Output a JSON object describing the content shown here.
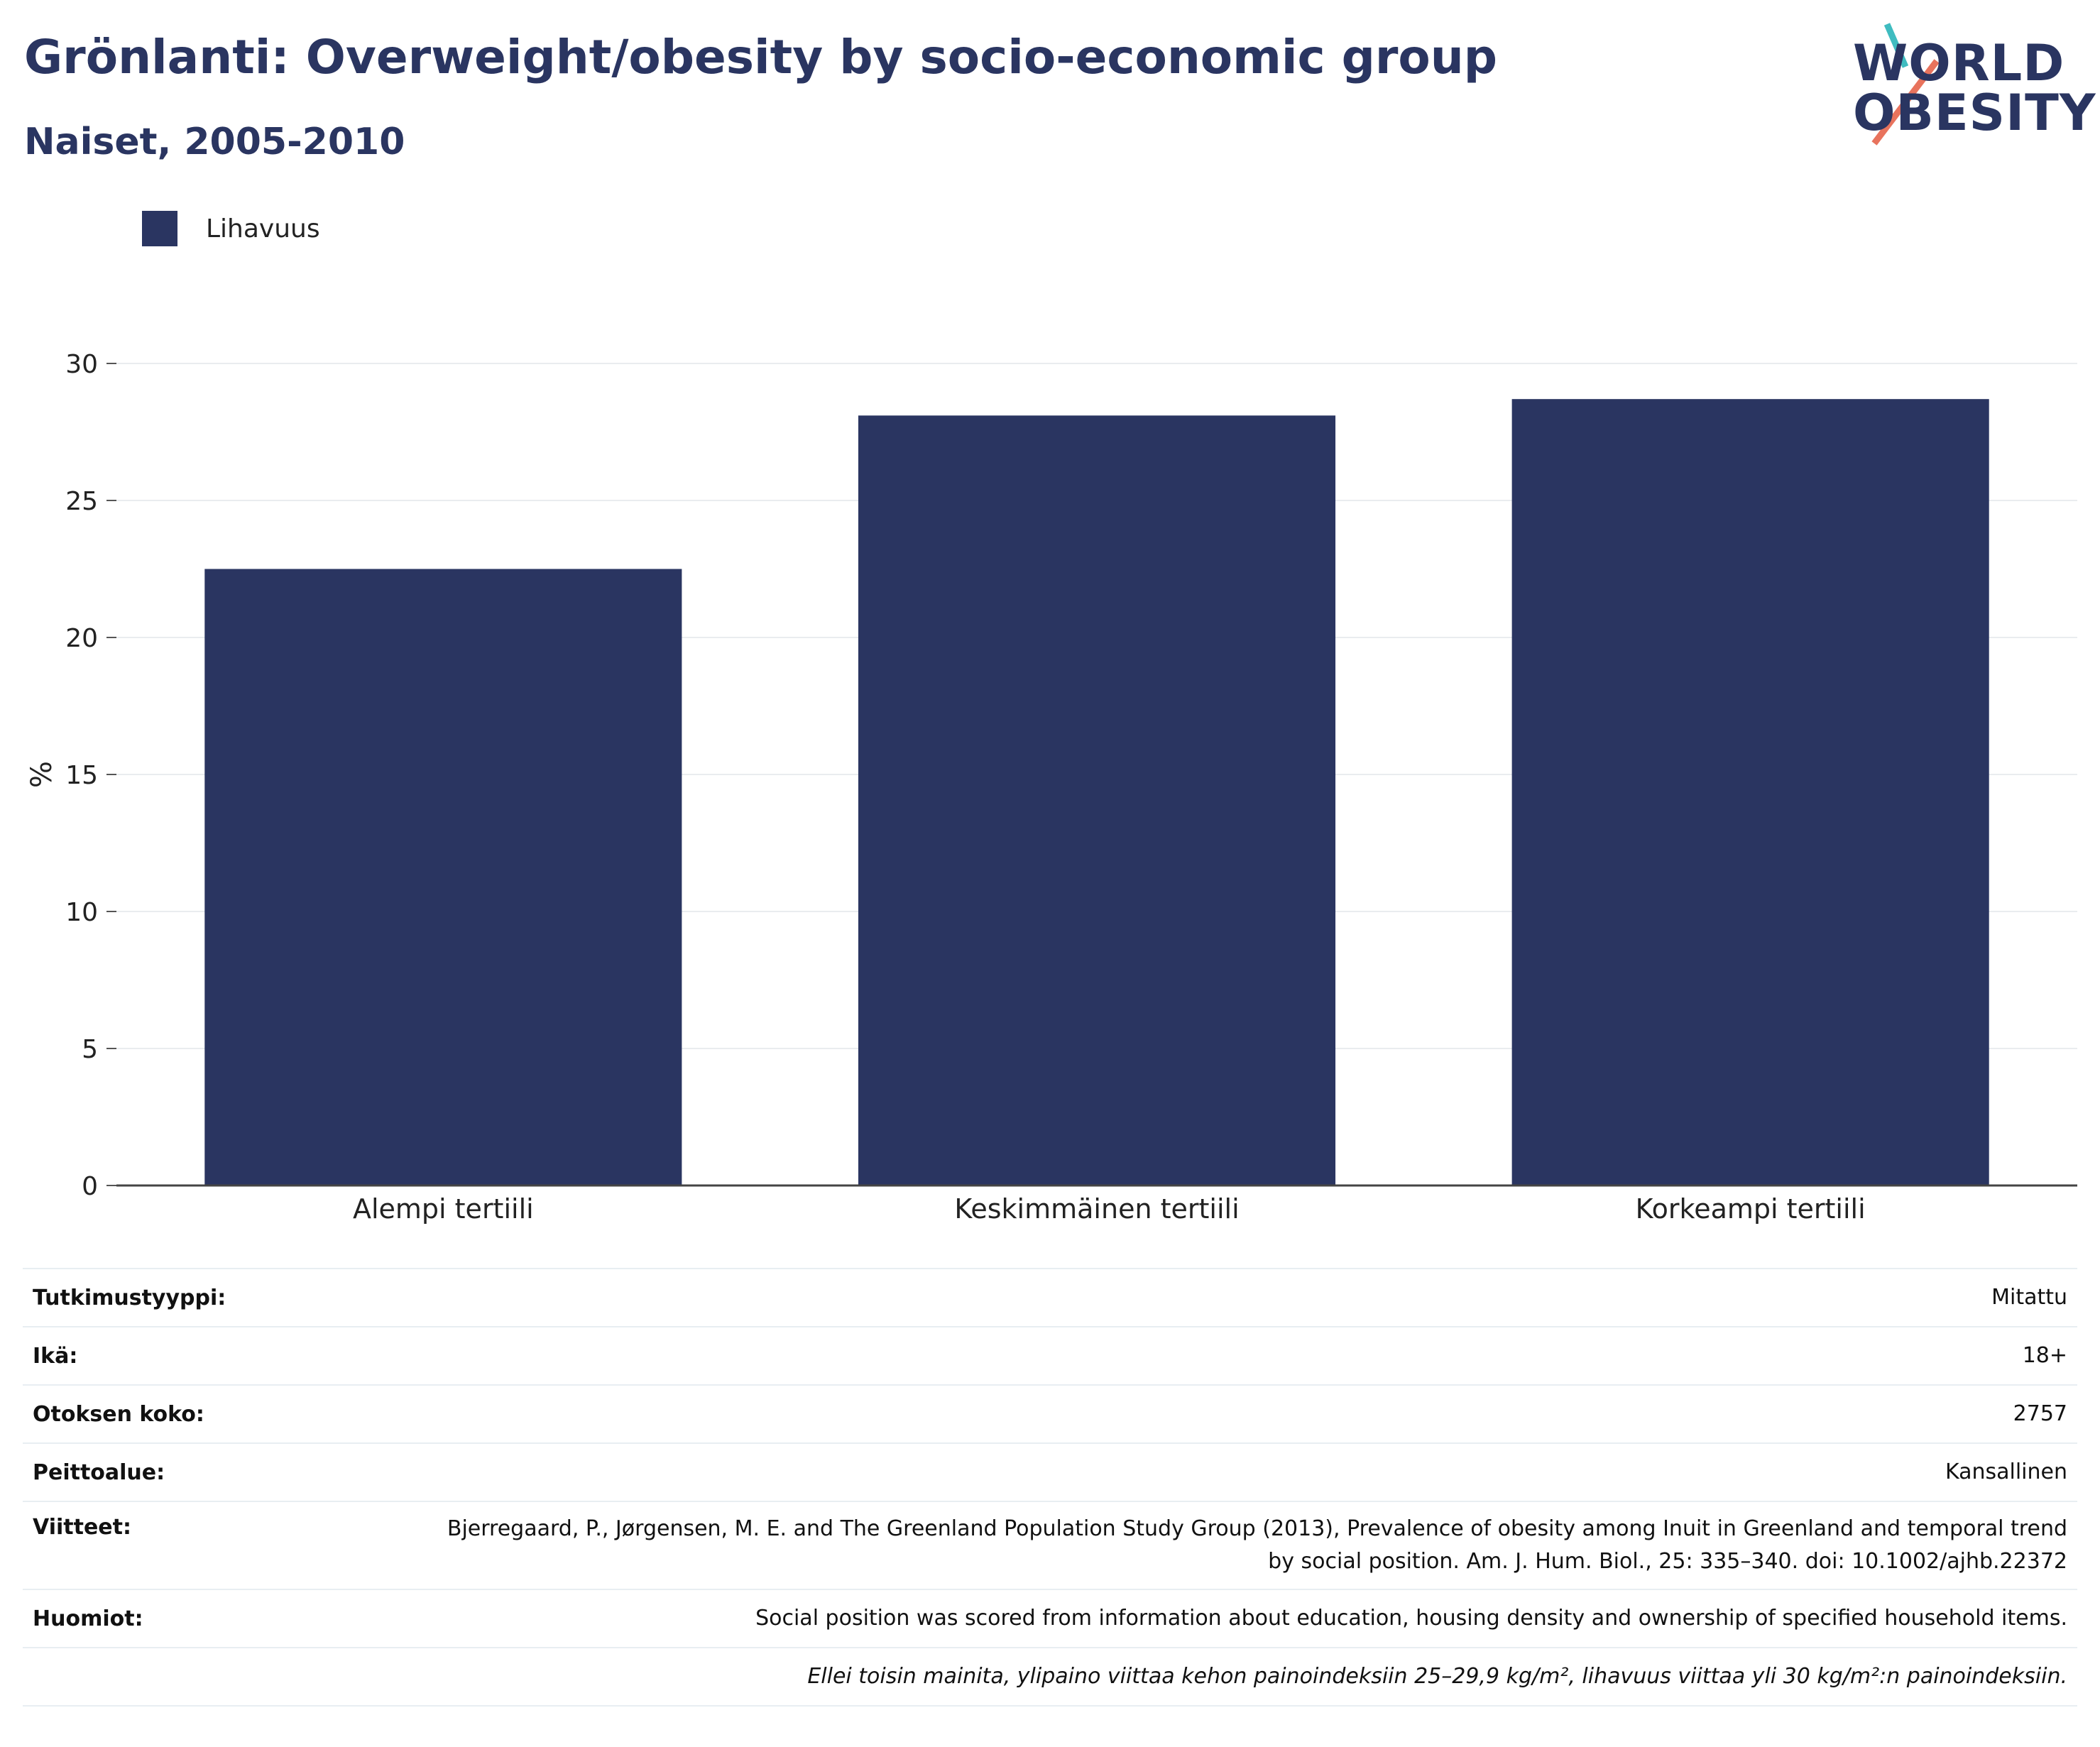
{
  "header": {
    "title": "Grönlanti: Overweight/obesity by socio-economic group",
    "subtitle": "Naiset, 2005-2010"
  },
  "logo": {
    "line1": "WORLD",
    "line2": "OBESITY",
    "text_color": "#2a3561",
    "accent_teal": "#3fbcc0",
    "accent_coral": "#e8735d"
  },
  "chart_data": {
    "type": "bar",
    "title": "Grönlanti: Overweight/obesity by socio-economic group",
    "subtitle": "Naiset, 2005-2010",
    "categories": [
      "Alempi tertiili",
      "Keskimmäinen tertiili",
      "Korkeampi tertiili"
    ],
    "series": [
      {
        "name": "Lihavuus",
        "values": [
          22.5,
          28.1,
          28.7
        ],
        "color": "#2a3561"
      }
    ],
    "xlabel": "",
    "ylabel": "%",
    "ylim": [
      0,
      30
    ],
    "yticks": [
      0,
      5,
      10,
      15,
      20,
      25,
      30
    ],
    "grid": true,
    "legend": "top-left"
  },
  "info": {
    "rows": [
      {
        "label": "Tutkimustyyppi:",
        "value": "Mitattu"
      },
      {
        "label": "Ikä:",
        "value": "18+"
      },
      {
        "label": "Otoksen koko:",
        "value": "2757"
      },
      {
        "label": "Peittoalue:",
        "value": "Kansallinen"
      },
      {
        "label": "Viitteet:",
        "value": "Bjerregaard, P., Jørgensen, M. E. and The Greenland Population Study Group (2013), Prevalence of obesity among Inuit in Greenland and temporal trend by social position. Am. J. Hum. Biol., 25: 335–340. doi: 10.1002/ajhb.22372"
      },
      {
        "label": "Huomiot:",
        "value": "Social position was scored from information about education, housing density and ownership of specified household items."
      }
    ],
    "footnote": "Ellei toisin mainita, ylipaino viittaa kehon painoindeksiin 25–29,9 kg/m², lihavuus viittaa yli 30 kg/m²:n painoindeksiin."
  }
}
